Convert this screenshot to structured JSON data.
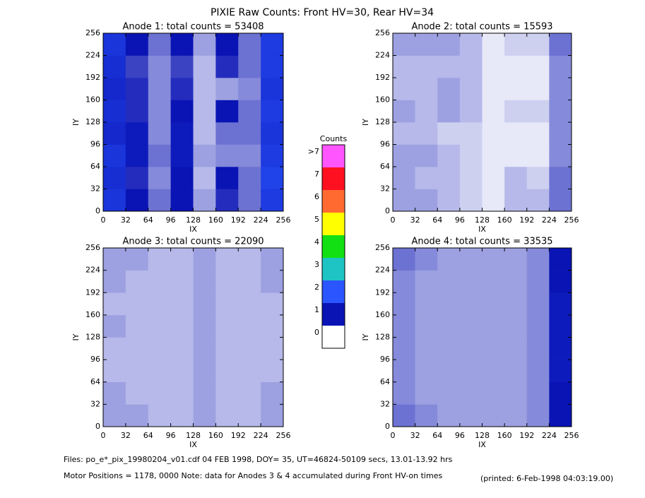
{
  "title": "PIXIE Raw Counts:  Front HV=30, Rear HV=34",
  "colorscale": {
    "title": "Counts",
    "labels": [
      "0",
      "1",
      "2",
      "3",
      "4",
      "5",
      "6",
      "7",
      ">7"
    ],
    "colors": [
      "#ffffff",
      "#0a14b4",
      "#2a55ff",
      "#1ec4c4",
      "#12e012",
      "#ffff00",
      "#ff6a30",
      "#ff1020",
      "#ff55ff"
    ]
  },
  "chart_data": [
    {
      "type": "heatmap",
      "title": "Anode 1: total counts = 53408",
      "x_label": "IX",
      "y_label": "IY",
      "xlim": [
        0,
        256
      ],
      "ylim": [
        0,
        256
      ],
      "xticks": [
        0,
        32,
        64,
        96,
        128,
        160,
        192,
        224,
        256
      ],
      "yticks": [
        0,
        32,
        64,
        96,
        128,
        160,
        192,
        224,
        256
      ],
      "values": [
        [
          1.5,
          1.0,
          0.6,
          1.0,
          0.4,
          0.9,
          0.6,
          1.6
        ],
        [
          1.4,
          0.9,
          0.5,
          1.0,
          0.3,
          1.0,
          0.6,
          1.7
        ],
        [
          1.5,
          1.1,
          0.6,
          1.1,
          0.4,
          0.5,
          0.5,
          1.6
        ],
        [
          1.3,
          1.1,
          0.5,
          1.1,
          0.3,
          0.6,
          0.6,
          1.5
        ],
        [
          1.4,
          0.9,
          0.5,
          1.0,
          0.3,
          1.0,
          0.6,
          1.6
        ],
        [
          1.3,
          0.9,
          0.5,
          0.9,
          0.3,
          0.4,
          0.5,
          1.5
        ],
        [
          1.4,
          0.8,
          0.5,
          0.8,
          0.3,
          0.9,
          0.6,
          1.6
        ],
        [
          1.5,
          1.0,
          0.6,
          1.0,
          0.4,
          1.0,
          0.6,
          1.6
        ]
      ]
    },
    {
      "type": "heatmap",
      "title": "Anode 2: total counts = 15593",
      "x_label": "IX",
      "y_label": "IY",
      "xlim": [
        0,
        256
      ],
      "ylim": [
        0,
        256
      ],
      "xticks": [
        0,
        32,
        64,
        96,
        128,
        160,
        192,
        224,
        256
      ],
      "yticks": [
        0,
        32,
        64,
        96,
        128,
        160,
        192,
        224,
        256
      ],
      "values": [
        [
          0.4,
          0.4,
          0.3,
          0.2,
          0.1,
          0.3,
          0.3,
          0.6
        ],
        [
          0.4,
          0.3,
          0.3,
          0.2,
          0.1,
          0.3,
          0.2,
          0.6
        ],
        [
          0.4,
          0.4,
          0.3,
          0.2,
          0.1,
          0.1,
          0.1,
          0.5
        ],
        [
          0.3,
          0.3,
          0.2,
          0.2,
          0.1,
          0.1,
          0.1,
          0.5
        ],
        [
          0.4,
          0.3,
          0.4,
          0.3,
          0.1,
          0.2,
          0.2,
          0.5
        ],
        [
          0.3,
          0.3,
          0.4,
          0.3,
          0.1,
          0.1,
          0.1,
          0.5
        ],
        [
          0.3,
          0.3,
          0.3,
          0.3,
          0.1,
          0.1,
          0.1,
          0.5
        ],
        [
          0.4,
          0.4,
          0.4,
          0.3,
          0.1,
          0.2,
          0.2,
          0.6
        ]
      ]
    },
    {
      "type": "heatmap",
      "title": "Anode 3: total counts = 22090",
      "x_label": "IX",
      "y_label": "IY",
      "xlim": [
        0,
        256
      ],
      "ylim": [
        0,
        256
      ],
      "xticks": [
        0,
        32,
        64,
        96,
        128,
        160,
        192,
        224,
        256
      ],
      "yticks": [
        0,
        32,
        64,
        96,
        128,
        160,
        192,
        224,
        256
      ],
      "values": [
        [
          0.4,
          0.4,
          0.3,
          0.3,
          0.4,
          0.3,
          0.3,
          0.4
        ],
        [
          0.4,
          0.3,
          0.3,
          0.3,
          0.4,
          0.3,
          0.3,
          0.4
        ],
        [
          0.3,
          0.3,
          0.3,
          0.3,
          0.4,
          0.3,
          0.3,
          0.3
        ],
        [
          0.3,
          0.3,
          0.3,
          0.3,
          0.4,
          0.3,
          0.3,
          0.3
        ],
        [
          0.4,
          0.3,
          0.3,
          0.3,
          0.4,
          0.3,
          0.3,
          0.3
        ],
        [
          0.3,
          0.3,
          0.3,
          0.3,
          0.4,
          0.3,
          0.3,
          0.3
        ],
        [
          0.4,
          0.3,
          0.3,
          0.3,
          0.4,
          0.3,
          0.3,
          0.4
        ],
        [
          0.4,
          0.4,
          0.3,
          0.3,
          0.4,
          0.3,
          0.3,
          0.4
        ]
      ]
    },
    {
      "type": "heatmap",
      "title": "Anode 4: total counts = 33535",
      "x_label": "IX",
      "y_label": "IY",
      "xlim": [
        0,
        256
      ],
      "ylim": [
        0,
        256
      ],
      "xticks": [
        0,
        32,
        64,
        96,
        128,
        160,
        192,
        224,
        256
      ],
      "yticks": [
        0,
        32,
        64,
        96,
        128,
        160,
        192,
        224,
        256
      ],
      "values": [
        [
          0.6,
          0.5,
          0.4,
          0.4,
          0.4,
          0.4,
          0.5,
          1.0
        ],
        [
          0.5,
          0.4,
          0.4,
          0.4,
          0.4,
          0.4,
          0.5,
          1.0
        ],
        [
          0.5,
          0.4,
          0.4,
          0.4,
          0.4,
          0.4,
          0.5,
          1.1
        ],
        [
          0.5,
          0.4,
          0.4,
          0.4,
          0.4,
          0.4,
          0.5,
          1.1
        ],
        [
          0.5,
          0.4,
          0.4,
          0.4,
          0.4,
          0.4,
          0.5,
          1.1
        ],
        [
          0.5,
          0.4,
          0.4,
          0.4,
          0.4,
          0.4,
          0.5,
          1.1
        ],
        [
          0.5,
          0.4,
          0.4,
          0.4,
          0.4,
          0.4,
          0.5,
          1.0
        ],
        [
          0.6,
          0.5,
          0.4,
          0.4,
          0.4,
          0.4,
          0.5,
          1.0
        ]
      ]
    }
  ],
  "footer": {
    "files": "Files: po_e*_pix_19980204_v01.cdf    04 FEB 1998, DOY= 35, UT=46824-50109 secs, 13.01-13.92 hrs",
    "motor": "Motor Positions = 1178, 0000    Note: data for Anodes 3 & 4 accumulated during Front HV-on times",
    "printed": "(printed:  6-Feb-1998 04:03:19.00)"
  }
}
